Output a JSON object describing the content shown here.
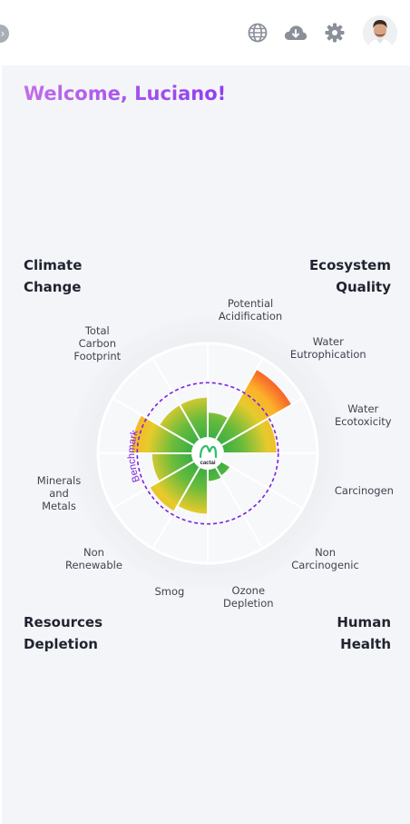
{
  "header": {
    "icons": [
      "globe-icon",
      "cloud-download-icon",
      "gear-icon",
      "avatar"
    ],
    "back_icon": "chevron-right-icon"
  },
  "welcome": "Welcome, Luciano!",
  "quadrants": {
    "climate": [
      "Climate",
      "Change"
    ],
    "ecosystem": [
      "Ecosystem",
      "Quality"
    ],
    "resources": [
      "Resources",
      "Depletion"
    ],
    "human": [
      "Human",
      "Health"
    ]
  },
  "chart_data": {
    "type": "polar-area",
    "benchmark_label": "Benchmark",
    "benchmark_value": 0.58,
    "center_logo": "cactai",
    "categories": [
      {
        "lines": [
          "Potential",
          "Acidification"
        ],
        "value": 0.26
      },
      {
        "lines": [
          "Water",
          "Eutrophication"
        ],
        "value": 0.86
      },
      {
        "lines": [
          "Water",
          "Ecotoxicity"
        ],
        "value": 0.56
      },
      {
        "lines": [
          "Carcinogen"
        ],
        "value": 0.0
      },
      {
        "lines": [
          "Non",
          "Carcinogenic"
        ],
        "value": 0.1
      },
      {
        "lines": [
          "Ozone",
          "Depletion"
        ],
        "value": 0.12
      },
      {
        "lines": [
          "Smog"
        ],
        "value": 0.47
      },
      {
        "lines": [
          "Non",
          "Renewable"
        ],
        "value": 0.54
      },
      {
        "lines": [
          "Minerals",
          "and",
          "Metals"
        ],
        "value": 0.42
      },
      {
        "lines": [],
        "value": 0.64
      },
      {
        "lines": [
          "Total",
          "Carbon",
          "Footprint"
        ],
        "value": 0.42
      },
      {
        "lines": [],
        "value": 0.42
      }
    ]
  }
}
